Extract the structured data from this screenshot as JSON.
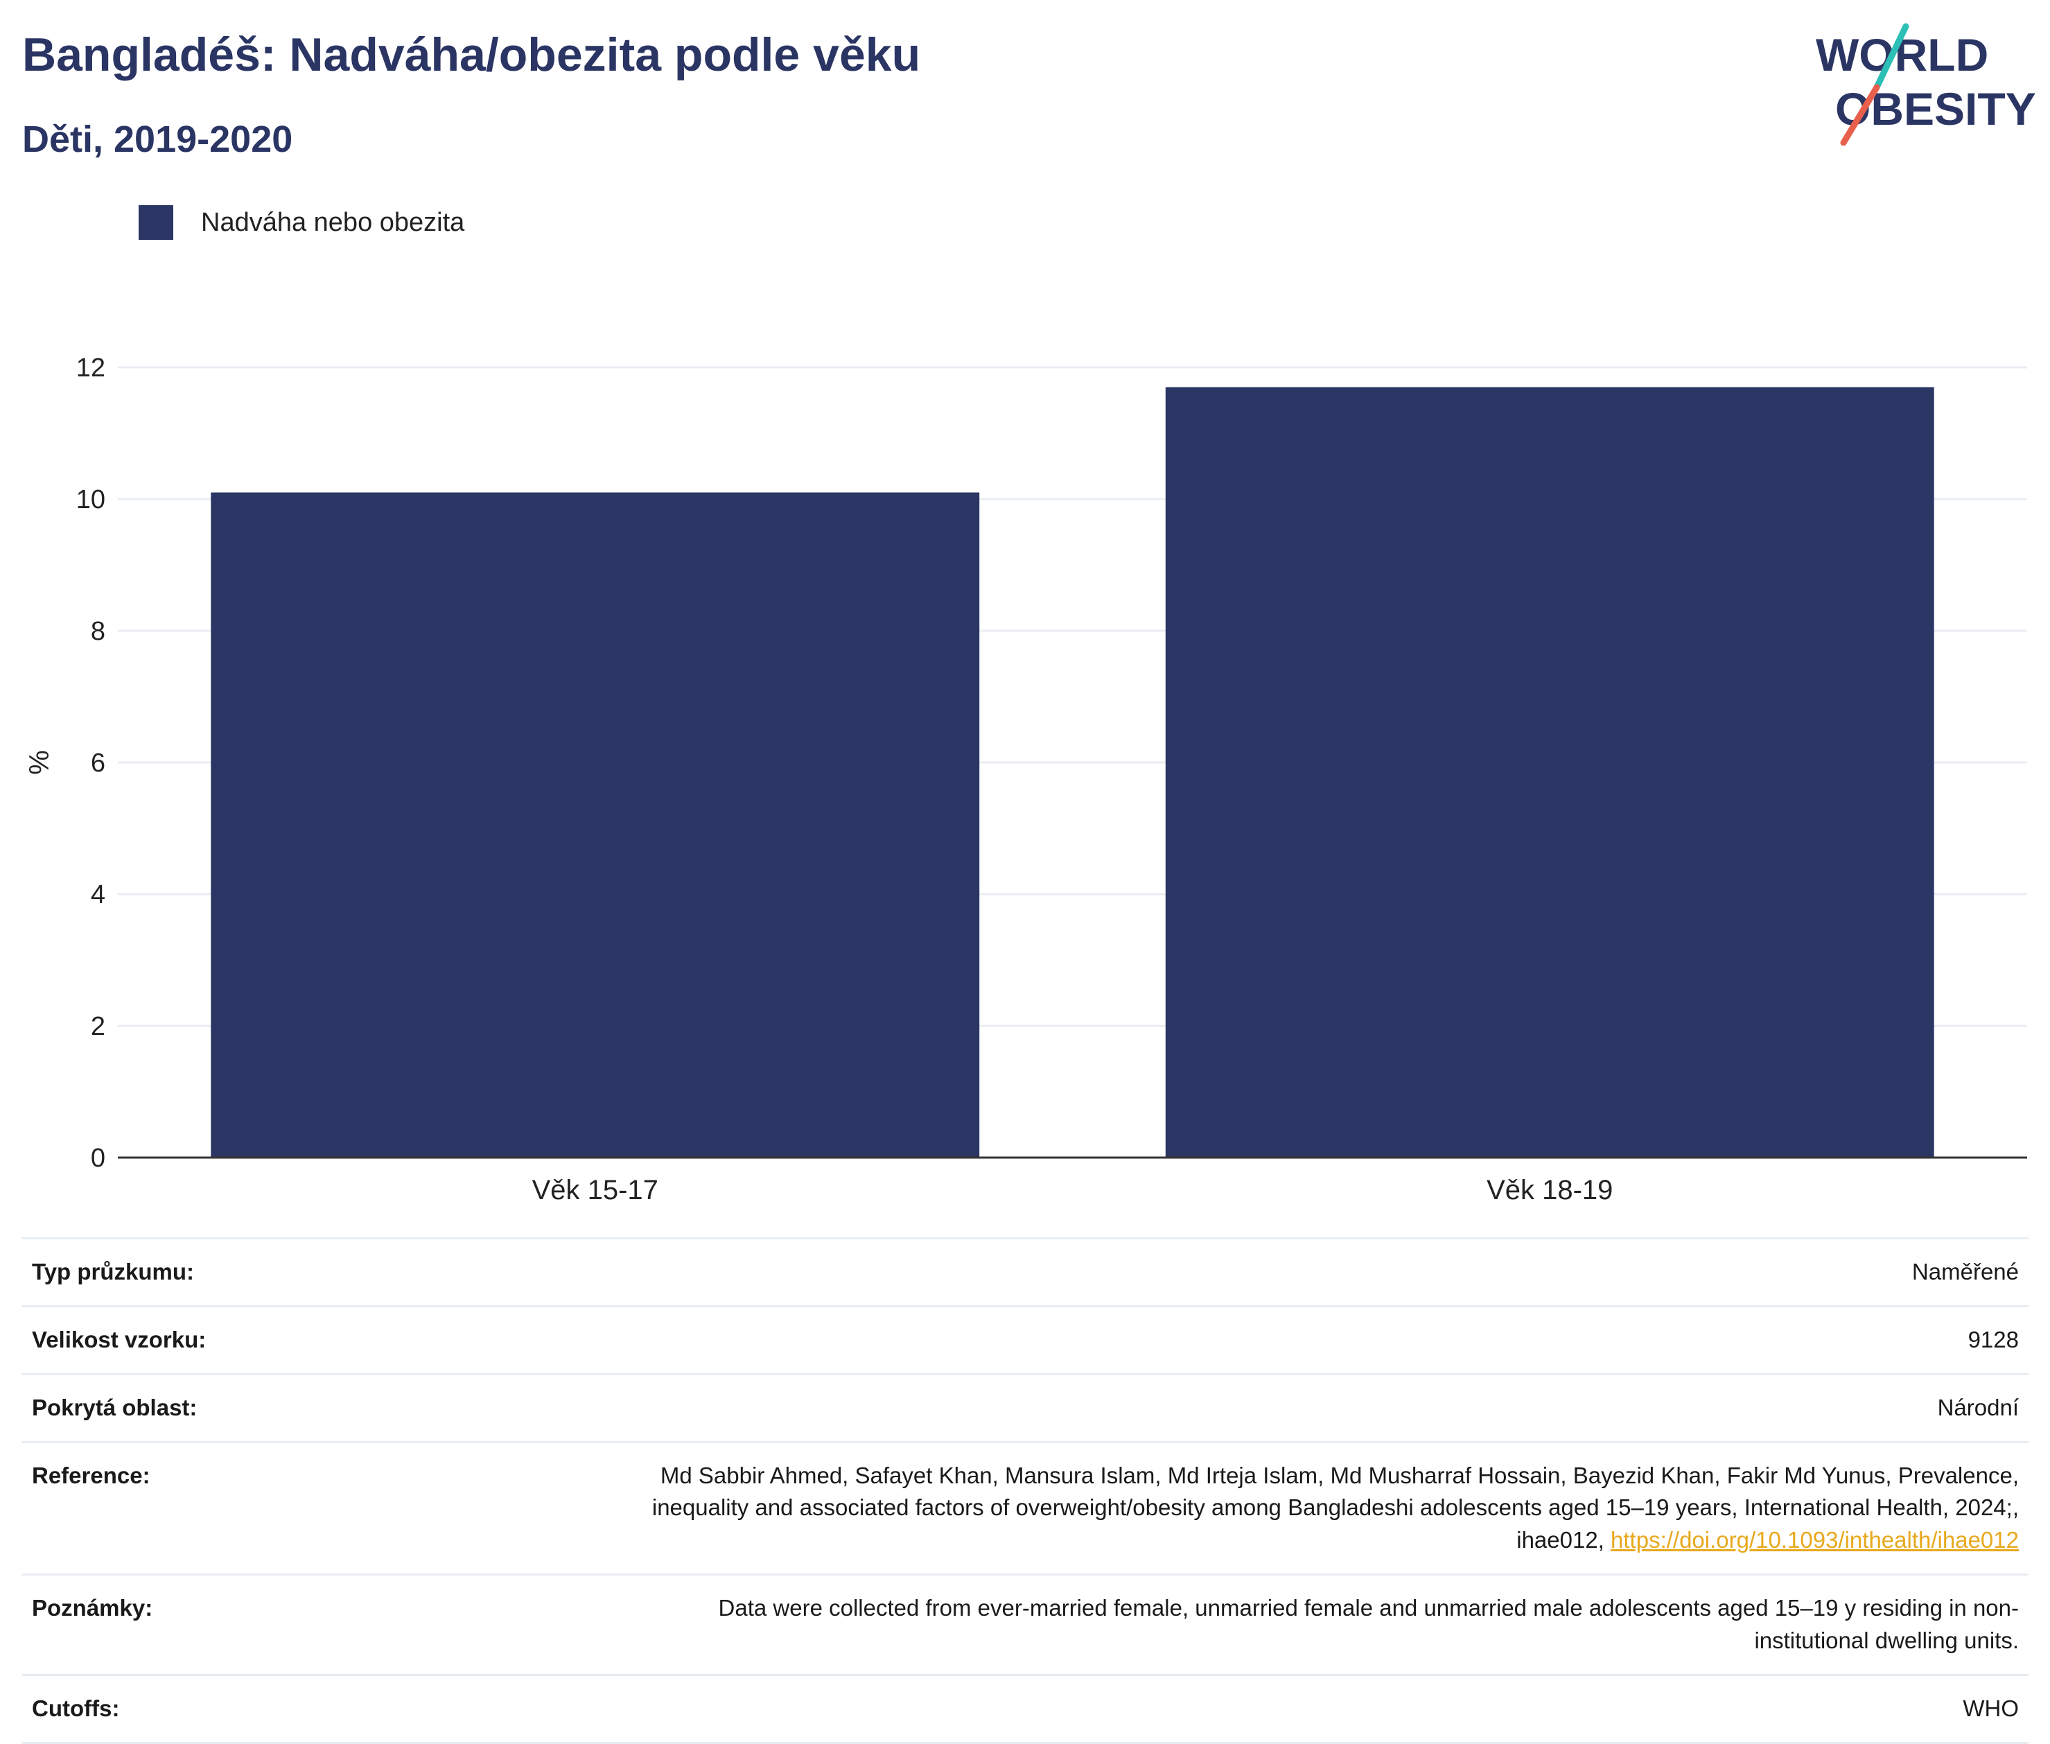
{
  "header": {
    "title": "Bangladéš: Nadváha/obezita podle věku",
    "subtitle": "Děti, 2019-2020"
  },
  "logo": {
    "line1": "WORLD",
    "line2": "OBESITY"
  },
  "colors": {
    "bar": "#2b3664",
    "title": "#2b3564",
    "link": "#e8a81c",
    "logo_teal": "#2bbfb6",
    "logo_red": "#e8604c"
  },
  "chart_data": {
    "type": "bar",
    "categories": [
      "Věk 15-17",
      "Věk 18-19"
    ],
    "series": [
      {
        "name": "Nadváha nebo obezita",
        "values": [
          10.1,
          11.7
        ]
      }
    ],
    "ylabel": "%",
    "ylim": [
      0,
      12
    ],
    "yticks": [
      0,
      2,
      4,
      6,
      8,
      10,
      12
    ],
    "grid": true,
    "legend": "top-left"
  },
  "info": {
    "rows": [
      {
        "label": "Typ průzkumu:",
        "value": "Naměřené"
      },
      {
        "label": "Velikost vzorku:",
        "value": "9128"
      },
      {
        "label": "Pokrytá oblast:",
        "value": "Národní"
      },
      {
        "label": "Reference:",
        "value_line1": "Md Sabbir Ahmed, Safayet Khan, Mansura Islam, Md Irteja Islam, Md Musharraf Hossain, Bayezid Khan, Fakir Md Yunus, Prevalence,",
        "value_line2": "inequality and associated factors of overweight/obesity among Bangladeshi adolescents aged 15–19 years, International Health, 2024;,",
        "value_line3": "ihae012, ",
        "link": "https://doi.org/10.1093/inthealth/ihae012"
      },
      {
        "label": "Poznámky:",
        "value_line1": "Data were collected from ever-married female, unmarried female and unmarried male adolescents aged 15–19 y residing in non-",
        "value_line2": "institutional dwelling units."
      },
      {
        "label": "Cutoffs:",
        "value": "WHO"
      }
    ]
  }
}
